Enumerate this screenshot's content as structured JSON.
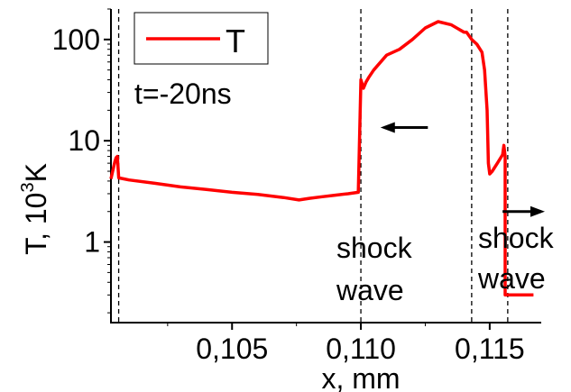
{
  "chart_data": {
    "type": "line",
    "title": "",
    "xlabel": "x, mm",
    "ylabel": {
      "base": "T, 10",
      "sup": "3",
      "unit": "K"
    },
    "yscale": "log",
    "xlim": [
      0.1003,
      0.117
    ],
    "ylim": [
      0.16,
      200
    ],
    "xticks": [
      {
        "value": 0.105,
        "label": "0,105"
      },
      {
        "value": 0.11,
        "label": "0,110"
      },
      {
        "value": 0.115,
        "label": "0,115"
      }
    ],
    "yticks": [
      {
        "value": 1,
        "label": "1"
      },
      {
        "value": 10,
        "label": "10"
      },
      {
        "value": 100,
        "label": "100"
      }
    ],
    "legend": {
      "position": "top-left",
      "entries": [
        "T"
      ]
    },
    "grid": false,
    "series": [
      {
        "name": "T",
        "color": "#ff0000",
        "x": [
          0.1003,
          0.10045,
          0.1005,
          0.10055,
          0.1006,
          0.1008,
          0.101,
          0.102,
          0.103,
          0.104,
          0.105,
          0.106,
          0.107,
          0.1076,
          0.108,
          0.1085,
          0.109,
          0.1095,
          0.1099,
          0.1099,
          0.11,
          0.1101,
          0.1102,
          0.1103,
          0.1105,
          0.111,
          0.1115,
          0.112,
          0.1125,
          0.113,
          0.1135,
          0.114,
          0.1141,
          0.1143,
          0.1145,
          0.1147,
          0.1148,
          0.1149,
          0.11495,
          0.115,
          0.1151,
          0.1153,
          0.1155,
          0.11555,
          0.1156,
          0.1156,
          0.116,
          0.1165,
          0.1167
        ],
        "y": [
          4.2,
          6.2,
          6.8,
          7.0,
          4.3,
          4.2,
          4.1,
          3.8,
          3.5,
          3.3,
          3.1,
          2.95,
          2.75,
          2.6,
          2.7,
          2.8,
          2.9,
          3.0,
          3.1,
          3.1,
          40,
          33,
          38,
          42,
          50,
          70,
          80,
          100,
          130,
          150,
          140,
          118,
          118,
          100,
          90,
          75,
          50,
          20,
          6,
          4.7,
          5.0,
          6.0,
          7.3,
          9.0,
          7.0,
          0.3,
          0.3,
          0.3,
          0.3
        ]
      }
    ],
    "vlines": [
      0.1006,
      0.11,
      0.1143,
      0.1157
    ],
    "annotations": [
      {
        "text": "t=-20ns"
      },
      {
        "text": "shock"
      },
      {
        "text": "wave"
      },
      {
        "text": "shock"
      },
      {
        "text": "wave"
      }
    ],
    "arrows": [
      {
        "direction": "left",
        "x_from": 0.1126,
        "x_to": 0.1109,
        "y": 13.5
      },
      {
        "direction": "right",
        "x_from": 0.1155,
        "x_to": 0.117,
        "y": 2.0
      }
    ]
  }
}
